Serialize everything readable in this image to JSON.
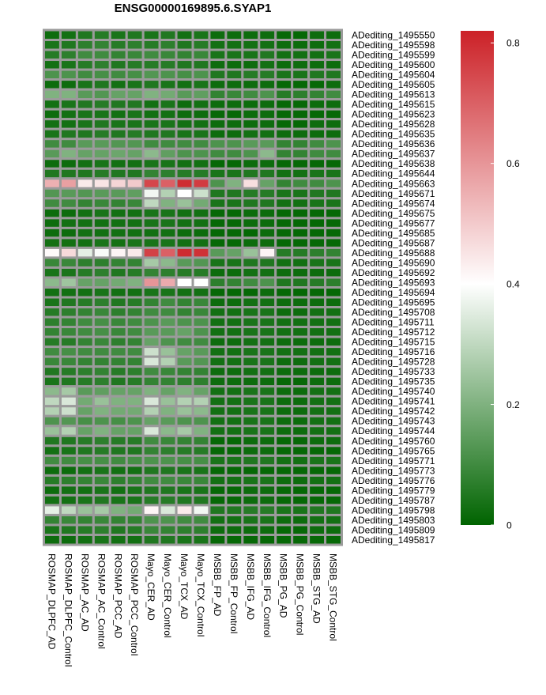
{
  "chart_data": {
    "type": "heatmap",
    "title": "ENSG00000169895.6.SYAP1",
    "columns": [
      "ROSMAP_DLPFC_AD",
      "ROSMAP_DLPFC_Control",
      "ROSMAP_AC_AD",
      "ROSMAP_AC_Control",
      "ROSMAP_PCC_AD",
      "ROSMAP_PCC_Control",
      "Mayo_CER_AD",
      "Mayo_CER_Control",
      "Mayo_TCX_AD",
      "Mayo_TCX_Control",
      "MSBB_FP_AD",
      "MSBB_FP_Control",
      "MSBB_IFG_AD",
      "MSBB_IFG_Control",
      "MSBB_PG_AD",
      "MSBB_PG_Control",
      "MSBB_STG_AD",
      "MSBB_STG_Control"
    ],
    "rows": [
      "ADediting_1495550",
      "ADediting_1495598",
      "ADediting_1495599",
      "ADediting_1495600",
      "ADediting_1495604",
      "ADediting_1495605",
      "ADediting_1495613",
      "ADediting_1495615",
      "ADediting_1495623",
      "ADediting_1495628",
      "ADediting_1495635",
      "ADediting_1495636",
      "ADediting_1495637",
      "ADediting_1495638",
      "ADediting_1495644",
      "ADediting_1495663",
      "ADediting_1495671",
      "ADediting_1495674",
      "ADediting_1495675",
      "ADediting_1495677",
      "ADediting_1495685",
      "ADediting_1495687",
      "ADediting_1495688",
      "ADediting_1495690",
      "ADediting_1495692",
      "ADediting_1495693",
      "ADediting_1495694",
      "ADediting_1495695",
      "ADediting_1495708",
      "ADediting_1495711",
      "ADediting_1495712",
      "ADediting_1495715",
      "ADediting_1495716",
      "ADediting_1495728",
      "ADediting_1495733",
      "ADediting_1495735",
      "ADediting_1495740",
      "ADediting_1495741",
      "ADediting_1495742",
      "ADediting_1495743",
      "ADediting_1495744",
      "ADediting_1495760",
      "ADediting_1495765",
      "ADediting_1495771",
      "ADediting_1495773",
      "ADediting_1495776",
      "ADediting_1495779",
      "ADediting_1495787",
      "ADediting_1495798",
      "ADediting_1495803",
      "ADediting_1495809",
      "ADediting_1495817"
    ],
    "values": [
      [
        0.02,
        0.03,
        0.05,
        0.06,
        0.04,
        0.05,
        0.04,
        0.05,
        0.03,
        0.04,
        0.02,
        0.02,
        0.02,
        0.02,
        0.01,
        0.01,
        0.02,
        0.02
      ],
      [
        0.04,
        0.05,
        0.07,
        0.08,
        0.06,
        0.07,
        0.06,
        0.07,
        0.05,
        0.06,
        0.03,
        0.03,
        0.03,
        0.03,
        0.02,
        0.02,
        0.02,
        0.03
      ],
      [
        0.06,
        0.07,
        0.1,
        0.1,
        0.08,
        0.09,
        0.1,
        0.09,
        0.08,
        0.09,
        0.04,
        0.04,
        0.04,
        0.05,
        0.03,
        0.03,
        0.03,
        0.04
      ],
      [
        0.03,
        0.04,
        0.06,
        0.07,
        0.05,
        0.06,
        0.06,
        0.06,
        0.05,
        0.05,
        0.02,
        0.02,
        0.02,
        0.03,
        0.02,
        0.02,
        0.02,
        0.02
      ],
      [
        0.12,
        0.12,
        0.1,
        0.11,
        0.1,
        0.11,
        0.13,
        0.12,
        0.11,
        0.12,
        0.05,
        0.05,
        0.06,
        0.06,
        0.04,
        0.04,
        0.05,
        0.05
      ],
      [
        0.02,
        0.02,
        0.04,
        0.05,
        0.03,
        0.04,
        0.05,
        0.04,
        0.03,
        0.04,
        0.02,
        0.02,
        0.02,
        0.02,
        0.01,
        0.01,
        0.01,
        0.02
      ],
      [
        0.2,
        0.2,
        0.14,
        0.13,
        0.16,
        0.16,
        0.2,
        0.18,
        0.14,
        0.15,
        0.08,
        0.09,
        0.1,
        0.12,
        0.06,
        0.07,
        0.08,
        0.1
      ],
      [
        0.03,
        0.04,
        0.05,
        0.06,
        0.05,
        0.05,
        0.03,
        0.04,
        0.02,
        0.03,
        0.02,
        0.02,
        0.02,
        0.02,
        0.01,
        0.01,
        0.02,
        0.02
      ],
      [
        0.02,
        0.03,
        0.04,
        0.04,
        0.03,
        0.04,
        0.03,
        0.03,
        0.02,
        0.02,
        0.01,
        0.01,
        0.02,
        0.02,
        0.01,
        0.01,
        0.01,
        0.01
      ],
      [
        0.03,
        0.03,
        0.04,
        0.05,
        0.04,
        0.04,
        0.04,
        0.04,
        0.03,
        0.03,
        0.02,
        0.02,
        0.02,
        0.02,
        0.01,
        0.01,
        0.02,
        0.02
      ],
      [
        0.04,
        0.05,
        0.05,
        0.06,
        0.05,
        0.06,
        0.05,
        0.05,
        0.04,
        0.04,
        0.02,
        0.02,
        0.03,
        0.03,
        0.02,
        0.02,
        0.02,
        0.02
      ],
      [
        0.1,
        0.1,
        0.14,
        0.14,
        0.13,
        0.13,
        0.1,
        0.1,
        0.1,
        0.1,
        0.12,
        0.12,
        0.14,
        0.14,
        0.08,
        0.08,
        0.1,
        0.12
      ],
      [
        0.14,
        0.2,
        0.16,
        0.16,
        0.17,
        0.16,
        0.22,
        0.15,
        0.12,
        0.12,
        0.1,
        0.1,
        0.12,
        0.22,
        0.08,
        0.08,
        0.1,
        0.1
      ],
      [
        0.02,
        0.02,
        0.03,
        0.04,
        0.03,
        0.03,
        0.04,
        0.04,
        0.03,
        0.03,
        0.01,
        0.01,
        0.02,
        0.02,
        0.01,
        0.01,
        0.01,
        0.01
      ],
      [
        0.05,
        0.05,
        0.05,
        0.06,
        0.05,
        0.05,
        0.08,
        0.07,
        0.06,
        0.06,
        0.04,
        0.04,
        0.05,
        0.05,
        0.03,
        0.03,
        0.04,
        0.04
      ],
      [
        0.55,
        0.58,
        0.44,
        0.45,
        0.48,
        0.5,
        0.75,
        0.7,
        0.8,
        0.77,
        0.12,
        0.2,
        0.46,
        0.16,
        0.08,
        0.1,
        0.1,
        0.12
      ],
      [
        0.13,
        0.14,
        0.13,
        0.14,
        0.14,
        0.15,
        0.38,
        0.28,
        0.4,
        0.32,
        0.05,
        0.05,
        0.06,
        0.06,
        0.04,
        0.04,
        0.05,
        0.05
      ],
      [
        0.1,
        0.1,
        0.08,
        0.09,
        0.08,
        0.09,
        0.3,
        0.2,
        0.24,
        0.18,
        0.04,
        0.04,
        0.05,
        0.05,
        0.03,
        0.03,
        0.04,
        0.04
      ],
      [
        0.02,
        0.02,
        0.03,
        0.04,
        0.03,
        0.03,
        0.04,
        0.04,
        0.03,
        0.03,
        0.01,
        0.01,
        0.02,
        0.02,
        0.01,
        0.01,
        0.01,
        0.01
      ],
      [
        0.02,
        0.03,
        0.03,
        0.03,
        0.03,
        0.03,
        0.04,
        0.04,
        0.03,
        0.03,
        0.01,
        0.01,
        0.02,
        0.02,
        0.01,
        0.01,
        0.01,
        0.01
      ],
      [
        0.02,
        0.02,
        0.03,
        0.03,
        0.03,
        0.03,
        0.03,
        0.03,
        0.02,
        0.02,
        0.01,
        0.01,
        0.01,
        0.02,
        0.01,
        0.01,
        0.01,
        0.01
      ],
      [
        0.03,
        0.03,
        0.03,
        0.04,
        0.03,
        0.04,
        0.04,
        0.04,
        0.03,
        0.03,
        0.01,
        0.01,
        0.02,
        0.02,
        0.01,
        0.01,
        0.01,
        0.01
      ],
      [
        0.41,
        0.47,
        0.36,
        0.39,
        0.42,
        0.44,
        0.76,
        0.7,
        0.8,
        0.79,
        0.14,
        0.16,
        0.24,
        0.42,
        0.06,
        0.06,
        0.07,
        0.08
      ],
      [
        0.09,
        0.09,
        0.07,
        0.07,
        0.08,
        0.08,
        0.26,
        0.22,
        0.14,
        0.13,
        0.04,
        0.04,
        0.05,
        0.05,
        0.03,
        0.03,
        0.04,
        0.04
      ],
      [
        0.04,
        0.04,
        0.06,
        0.07,
        0.05,
        0.06,
        0.08,
        0.07,
        0.06,
        0.06,
        0.02,
        0.02,
        0.03,
        0.03,
        0.02,
        0.02,
        0.02,
        0.02
      ],
      [
        0.22,
        0.25,
        0.16,
        0.16,
        0.18,
        0.2,
        0.6,
        0.56,
        0.4,
        0.4,
        0.07,
        0.08,
        0.1,
        0.12,
        0.05,
        0.05,
        0.06,
        0.07
      ],
      [
        0.03,
        0.03,
        0.03,
        0.04,
        0.03,
        0.03,
        0.04,
        0.04,
        0.03,
        0.03,
        0.01,
        0.01,
        0.01,
        0.02,
        0.01,
        0.01,
        0.01,
        0.01
      ],
      [
        0.04,
        0.05,
        0.06,
        0.07,
        0.05,
        0.06,
        0.08,
        0.1,
        0.08,
        0.09,
        0.02,
        0.02,
        0.03,
        0.03,
        0.02,
        0.02,
        0.02,
        0.02
      ],
      [
        0.06,
        0.07,
        0.08,
        0.09,
        0.07,
        0.08,
        0.1,
        0.1,
        0.08,
        0.09,
        0.03,
        0.03,
        0.04,
        0.04,
        0.02,
        0.02,
        0.03,
        0.03
      ],
      [
        0.07,
        0.08,
        0.1,
        0.11,
        0.09,
        0.1,
        0.12,
        0.14,
        0.12,
        0.12,
        0.03,
        0.03,
        0.04,
        0.04,
        0.03,
        0.03,
        0.03,
        0.03
      ],
      [
        0.08,
        0.09,
        0.1,
        0.11,
        0.09,
        0.1,
        0.14,
        0.14,
        0.16,
        0.12,
        0.03,
        0.03,
        0.04,
        0.04,
        0.03,
        0.03,
        0.03,
        0.03
      ],
      [
        0.06,
        0.06,
        0.08,
        0.09,
        0.07,
        0.08,
        0.16,
        0.12,
        0.1,
        0.1,
        0.02,
        0.02,
        0.03,
        0.03,
        0.02,
        0.02,
        0.02,
        0.02
      ],
      [
        0.1,
        0.11,
        0.1,
        0.1,
        0.1,
        0.1,
        0.32,
        0.24,
        0.16,
        0.14,
        0.03,
        0.03,
        0.04,
        0.04,
        0.03,
        0.03,
        0.03,
        0.03
      ],
      [
        0.09,
        0.09,
        0.08,
        0.08,
        0.08,
        0.08,
        0.34,
        0.28,
        0.14,
        0.13,
        0.03,
        0.03,
        0.04,
        0.04,
        0.02,
        0.02,
        0.03,
        0.03
      ],
      [
        0.05,
        0.06,
        0.07,
        0.08,
        0.06,
        0.07,
        0.1,
        0.09,
        0.08,
        0.08,
        0.02,
        0.02,
        0.03,
        0.03,
        0.02,
        0.02,
        0.02,
        0.02
      ],
      [
        0.04,
        0.05,
        0.06,
        0.07,
        0.05,
        0.06,
        0.08,
        0.08,
        0.07,
        0.07,
        0.02,
        0.02,
        0.02,
        0.02,
        0.01,
        0.01,
        0.02,
        0.02
      ],
      [
        0.22,
        0.26,
        0.14,
        0.15,
        0.16,
        0.16,
        0.2,
        0.16,
        0.2,
        0.16,
        0.03,
        0.03,
        0.04,
        0.04,
        0.02,
        0.02,
        0.03,
        0.03
      ],
      [
        0.3,
        0.34,
        0.18,
        0.24,
        0.2,
        0.2,
        0.34,
        0.24,
        0.28,
        0.28,
        0.03,
        0.03,
        0.04,
        0.04,
        0.02,
        0.02,
        0.03,
        0.03
      ],
      [
        0.28,
        0.32,
        0.16,
        0.2,
        0.18,
        0.18,
        0.28,
        0.2,
        0.24,
        0.22,
        0.03,
        0.03,
        0.04,
        0.04,
        0.02,
        0.02,
        0.03,
        0.03
      ],
      [
        0.12,
        0.13,
        0.11,
        0.12,
        0.11,
        0.12,
        0.16,
        0.14,
        0.12,
        0.12,
        0.03,
        0.03,
        0.04,
        0.04,
        0.02,
        0.02,
        0.03,
        0.03
      ],
      [
        0.24,
        0.28,
        0.16,
        0.2,
        0.16,
        0.16,
        0.34,
        0.22,
        0.26,
        0.2,
        0.03,
        0.03,
        0.04,
        0.04,
        0.02,
        0.02,
        0.03,
        0.03
      ],
      [
        0.05,
        0.05,
        0.06,
        0.07,
        0.06,
        0.06,
        0.1,
        0.09,
        0.08,
        0.08,
        0.01,
        0.01,
        0.02,
        0.02,
        0.01,
        0.01,
        0.02,
        0.02
      ],
      [
        0.03,
        0.04,
        0.05,
        0.06,
        0.05,
        0.05,
        0.08,
        0.07,
        0.06,
        0.06,
        0.01,
        0.01,
        0.02,
        0.02,
        0.01,
        0.01,
        0.01,
        0.01
      ],
      [
        0.1,
        0.1,
        0.11,
        0.11,
        0.1,
        0.11,
        0.12,
        0.12,
        0.11,
        0.11,
        0.04,
        0.04,
        0.05,
        0.05,
        0.03,
        0.03,
        0.04,
        0.04
      ],
      [
        0.02,
        0.02,
        0.03,
        0.04,
        0.03,
        0.03,
        0.05,
        0.05,
        0.04,
        0.04,
        0.01,
        0.01,
        0.01,
        0.01,
        0.01,
        0.01,
        0.01,
        0.01
      ],
      [
        0.06,
        0.07,
        0.08,
        0.09,
        0.07,
        0.08,
        0.1,
        0.1,
        0.09,
        0.09,
        0.03,
        0.03,
        0.04,
        0.04,
        0.02,
        0.02,
        0.03,
        0.03
      ],
      [
        0.02,
        0.03,
        0.03,
        0.04,
        0.03,
        0.04,
        0.05,
        0.05,
        0.04,
        0.04,
        0.01,
        0.01,
        0.02,
        0.02,
        0.01,
        0.01,
        0.01,
        0.01
      ],
      [
        0.03,
        0.03,
        0.04,
        0.05,
        0.04,
        0.04,
        0.06,
        0.06,
        0.05,
        0.05,
        0.01,
        0.01,
        0.02,
        0.02,
        0.01,
        0.01,
        0.01,
        0.01
      ],
      [
        0.36,
        0.3,
        0.24,
        0.26,
        0.2,
        0.18,
        0.42,
        0.34,
        0.44,
        0.38,
        0.05,
        0.05,
        0.06,
        0.06,
        0.04,
        0.04,
        0.05,
        0.05
      ],
      [
        0.08,
        0.09,
        0.08,
        0.09,
        0.08,
        0.08,
        0.12,
        0.12,
        0.1,
        0.1,
        0.03,
        0.03,
        0.04,
        0.04,
        0.02,
        0.02,
        0.03,
        0.03
      ],
      [
        0.04,
        0.05,
        0.06,
        0.07,
        0.05,
        0.06,
        0.09,
        0.08,
        0.07,
        0.07,
        0.02,
        0.02,
        0.02,
        0.02,
        0.01,
        0.01,
        0.02,
        0.02
      ],
      [
        0.02,
        0.02,
        0.03,
        0.04,
        0.03,
        0.03,
        0.05,
        0.05,
        0.04,
        0.04,
        0.01,
        0.01,
        0.01,
        0.01,
        0.01,
        0.01,
        0.01,
        0.01
      ]
    ],
    "color_scale": {
      "range": [
        0,
        0.82
      ],
      "low_color": "#006400",
      "mid_value": 0.4,
      "mid_color": "#ffffff",
      "high_color": "#cc2127",
      "ticks": [
        "0",
        "0.2",
        "0.4",
        "0.6",
        "0.8"
      ],
      "tick_values": [
        0,
        0.2,
        0.4,
        0.6,
        0.8
      ]
    },
    "grid_color": "#9b9b9b",
    "legend": "right"
  }
}
